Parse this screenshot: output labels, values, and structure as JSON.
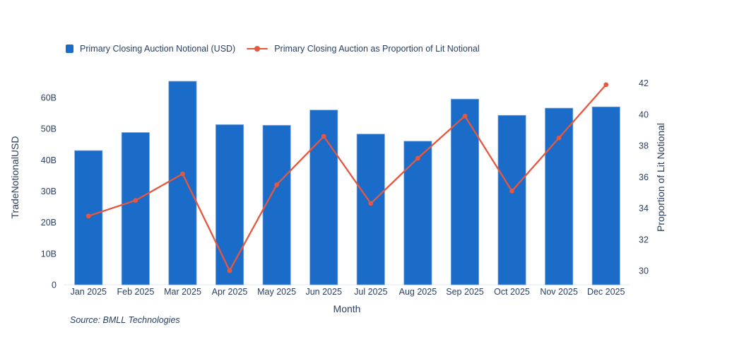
{
  "legend": {
    "bar_label": "Primary Closing Auction Notional (USD)",
    "line_label": "Primary Closing Auction as Proportion of Lit Notional"
  },
  "source_note": "Source: BMLL Technologies",
  "chart_data": {
    "type": "bar",
    "subtype": "bar+line dual-axis combo",
    "title": "",
    "xlabel": "Month",
    "ylabel_left": "TradeNotionalUSD",
    "ylabel_right": "Proportion of Lit Notional",
    "grid": false,
    "legend_position": "top-left",
    "categories": [
      "Jan 2025",
      "Feb 2025",
      "Mar 2025",
      "Apr 2025",
      "May 2025",
      "Jun 2025",
      "Jul 2025",
      "Aug 2025",
      "Sep 2025",
      "Oct 2025",
      "Nov 2025",
      "Dec 2025"
    ],
    "series": [
      {
        "name": "Primary Closing Auction Notional (USD)",
        "type": "bar",
        "yaxis": "left",
        "unit": "billions USD",
        "color": "#1a6cc8",
        "values": [
          43.0,
          48.8,
          65.2,
          51.3,
          51.1,
          56.0,
          48.3,
          46.0,
          59.5,
          54.3,
          56.6,
          57.0
        ]
      },
      {
        "name": "Primary Closing Auction as Proportion of Lit Notional",
        "type": "line",
        "yaxis": "right",
        "unit": "percent of lit notional",
        "color": "#e6573f",
        "values": [
          33.5,
          34.5,
          36.2,
          30.0,
          35.5,
          38.6,
          34.3,
          37.2,
          39.9,
          35.1,
          38.5,
          41.9
        ]
      }
    ],
    "left_axis": {
      "min": 0,
      "max": 68.6,
      "tick_values": [
        0,
        10,
        20,
        30,
        40,
        50,
        60
      ],
      "tick_labels": [
        "0",
        "10B",
        "20B",
        "30B",
        "40B",
        "50B",
        "60B"
      ]
    },
    "right_axis": {
      "min": 29.1,
      "max": 42.8,
      "tick_values": [
        30,
        32,
        34,
        36,
        38,
        40,
        42
      ],
      "tick_labels": [
        "30",
        "32",
        "34",
        "36",
        "38",
        "40",
        "42"
      ]
    },
    "text_color": "#2a3f5f",
    "axis_line_color": "#e7ecf4"
  }
}
